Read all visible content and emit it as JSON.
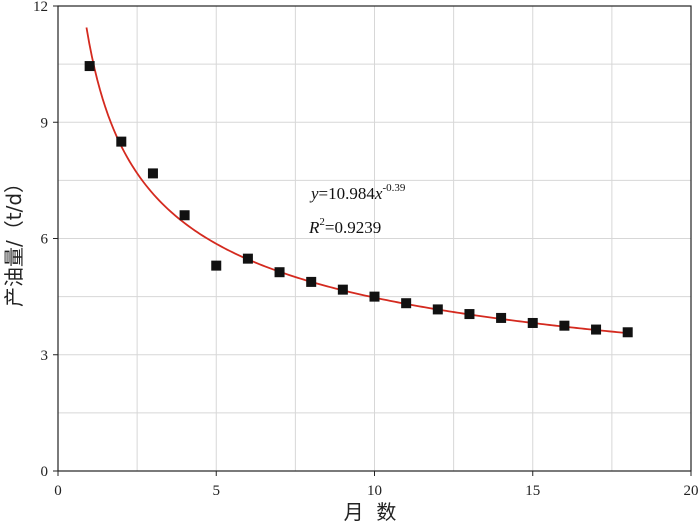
{
  "chart_data": {
    "type": "scatter",
    "xlabel": "月  数",
    "ylabel": "产油量/（t/d）",
    "xlim": [
      0,
      20
    ],
    "ylim": [
      0,
      12
    ],
    "x_ticks": [
      "0",
      "5",
      "10",
      "15",
      "20"
    ],
    "y_ticks": [
      "0",
      "3",
      "6",
      "9",
      "12"
    ],
    "grid": true,
    "series": [
      {
        "x": [
          1,
          2,
          3,
          4,
          5,
          6,
          7,
          8,
          9,
          10,
          11,
          12,
          13,
          14,
          15,
          16,
          17,
          18
        ],
        "y": [
          10.45,
          8.5,
          7.68,
          6.6,
          5.3,
          5.48,
          5.13,
          4.88,
          4.68,
          4.5,
          4.33,
          4.17,
          4.05,
          3.95,
          3.82,
          3.75,
          3.65,
          3.58
        ]
      }
    ],
    "fit": {
      "a": 10.984,
      "b": -0.39,
      "x_range": [
        0.9,
        18
      ],
      "equation_y": "y",
      "equation_rhs": "=10.984",
      "equation_x": "x",
      "equation_exp": "-0.39",
      "r2_r": "R",
      "r2_sup": "2",
      "r2_val": "=0.9239"
    },
    "colors": {
      "markers": "#111111",
      "fit_line": "#d42a1f",
      "grid": "#d7d7d7",
      "axis": "#222222"
    }
  }
}
